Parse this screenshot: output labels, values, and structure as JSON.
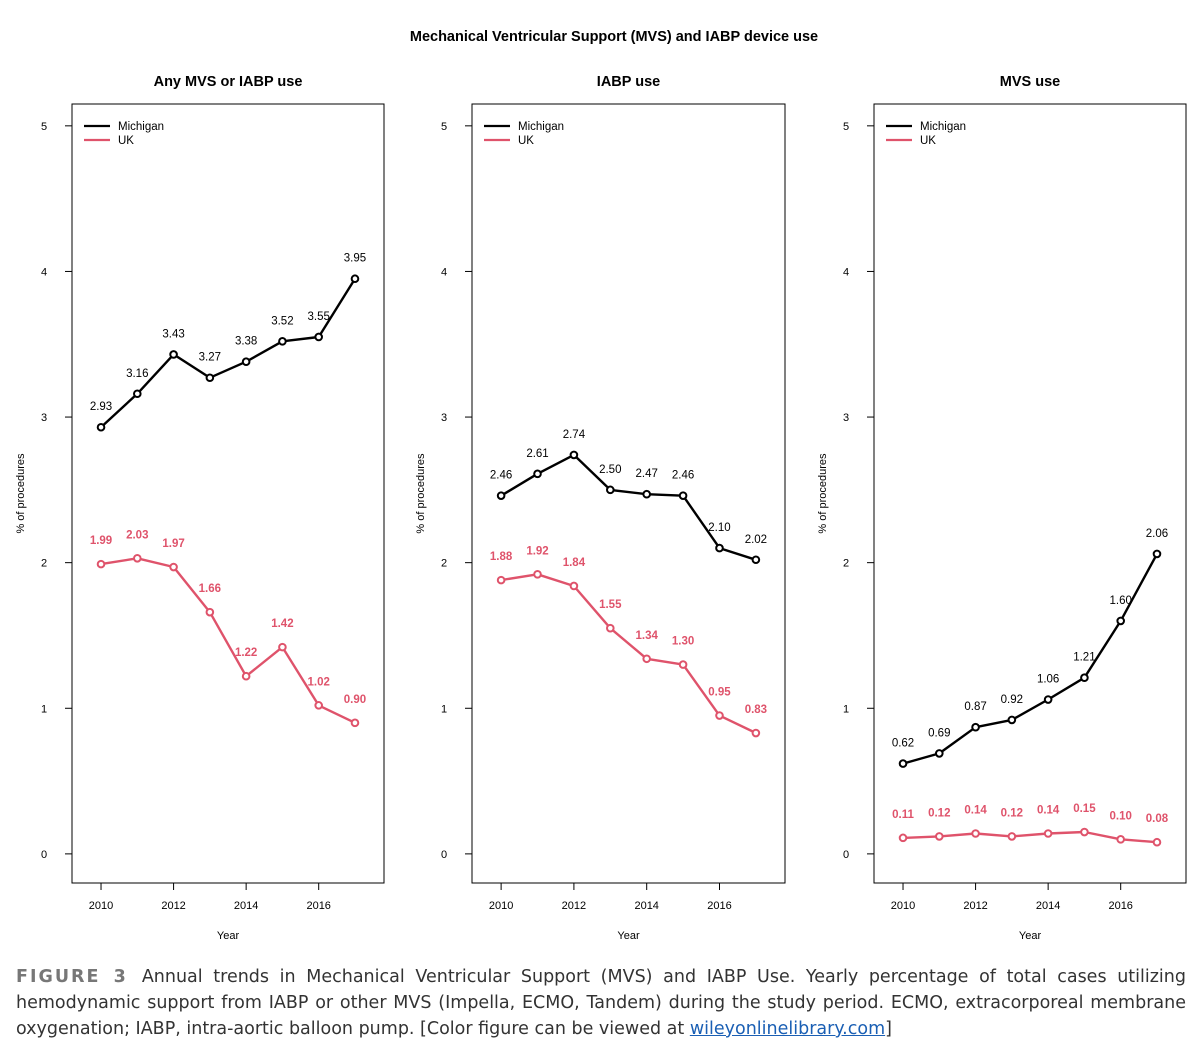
{
  "figure": {
    "main_title": "Mechanical Ventricular Support (MVS) and IABP device use",
    "caption_label": "FIGURE 3",
    "caption_text": "Annual trends in Mechanical Ventricular Support (MVS) and IABP Use. Yearly percentage of total cases utilizing hemodynamic support from IABP or other MVS (Impella, ECMO, Tandem) during the study period. ECMO, extracorporeal membrane oxygenation; IABP, intra-aortic balloon pump. [Color figure can be viewed at ",
    "caption_link": "wileyonlinelibrary.com",
    "caption_end": "]"
  },
  "colors": {
    "michigan": "#000000",
    "uk": "#df536b"
  },
  "chart_data": [
    {
      "type": "line",
      "title": "Any MVS or IABP use",
      "xlabel": "Year",
      "ylabel": "% of procedures",
      "xlim": [
        2009.2,
        2017.8
      ],
      "ylim": [
        -0.2,
        5.15
      ],
      "xticks": [
        2010,
        2012,
        2014,
        2016
      ],
      "yticks": [
        0,
        1,
        2,
        3,
        4,
        5
      ],
      "legend": "top-left",
      "x": [
        2010,
        2011,
        2012,
        2013,
        2014,
        2015,
        2016,
        2017
      ],
      "series": [
        {
          "name": "Michigan",
          "color": "#000000",
          "values": [
            2.93,
            3.16,
            3.43,
            3.27,
            3.38,
            3.52,
            3.55,
            3.95
          ],
          "labels": [
            "2.93",
            "3.16",
            "3.43",
            "3.27",
            "3.38",
            "3.52",
            "3.55",
            "3.95"
          ]
        },
        {
          "name": "UK",
          "color": "#df536b",
          "values": [
            1.99,
            2.03,
            1.97,
            1.66,
            1.22,
            1.42,
            1.02,
            0.9
          ],
          "labels": [
            "1.99",
            "2.03",
            "1.97",
            "1.66",
            "1.22",
            "1.42",
            "1.02",
            "0.90"
          ]
        }
      ]
    },
    {
      "type": "line",
      "title": "IABP use",
      "xlabel": "Year",
      "ylabel": "% of procedures",
      "xlim": [
        2009.2,
        2017.8
      ],
      "ylim": [
        -0.2,
        5.15
      ],
      "xticks": [
        2010,
        2012,
        2014,
        2016
      ],
      "yticks": [
        0,
        1,
        2,
        3,
        4,
        5
      ],
      "legend": "top-left",
      "x": [
        2010,
        2011,
        2012,
        2013,
        2014,
        2015,
        2016,
        2017
      ],
      "series": [
        {
          "name": "Michigan",
          "color": "#000000",
          "values": [
            2.46,
            2.61,
            2.74,
            2.5,
            2.47,
            2.46,
            2.1,
            2.02
          ],
          "labels": [
            "2.46",
            "2.61",
            "2.74",
            "2.50",
            "2.47",
            "2.46",
            "2.10",
            "2.02"
          ]
        },
        {
          "name": "UK",
          "color": "#df536b",
          "values": [
            1.88,
            1.92,
            1.84,
            1.55,
            1.34,
            1.3,
            0.95,
            0.83
          ],
          "labels": [
            "1.88",
            "1.92",
            "1.84",
            "1.55",
            "1.34",
            "1.30",
            "0.95",
            "0.83"
          ]
        }
      ]
    },
    {
      "type": "line",
      "title": "MVS use",
      "xlabel": "Year",
      "ylabel": "% of procedures",
      "xlim": [
        2009.2,
        2017.8
      ],
      "ylim": [
        -0.2,
        5.15
      ],
      "xticks": [
        2010,
        2012,
        2014,
        2016
      ],
      "yticks": [
        0,
        1,
        2,
        3,
        4,
        5
      ],
      "legend": "top-left",
      "x": [
        2010,
        2011,
        2012,
        2013,
        2014,
        2015,
        2016,
        2017
      ],
      "series": [
        {
          "name": "Michigan",
          "color": "#000000",
          "values": [
            0.62,
            0.69,
            0.87,
            0.92,
            1.06,
            1.21,
            1.6,
            2.06
          ],
          "labels": [
            "0.62",
            "0.69",
            "0.87",
            "0.92",
            "1.06",
            "1.21",
            "1.60",
            "2.06"
          ]
        },
        {
          "name": "UK",
          "color": "#df536b",
          "values": [
            0.11,
            0.12,
            0.14,
            0.12,
            0.14,
            0.15,
            0.1,
            0.08
          ],
          "labels": [
            "0.11",
            "0.12",
            "0.14",
            "0.12",
            "0.14",
            "0.15",
            "0.10",
            "0.08"
          ]
        }
      ]
    }
  ]
}
